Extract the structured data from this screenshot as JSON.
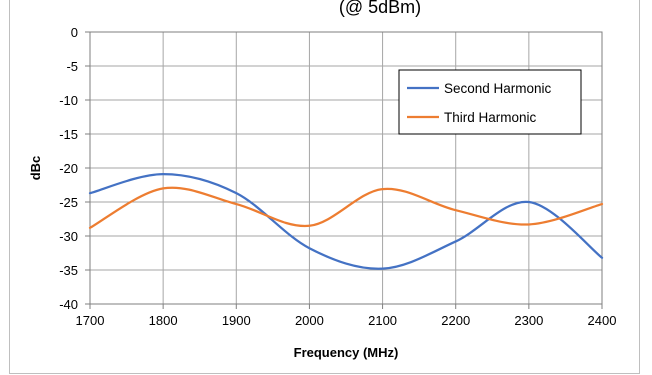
{
  "chart_data": {
    "type": "line",
    "title": "(@ 5dBm)",
    "xlabel": "Frequency (MHz)",
    "ylabel": "dBc",
    "xlim": [
      1700,
      2400
    ],
    "ylim": [
      -40,
      0
    ],
    "x_ticks": [
      1700,
      1800,
      1900,
      2000,
      2100,
      2200,
      2300,
      2400
    ],
    "y_ticks": [
      0,
      -5,
      -10,
      -15,
      -20,
      -25,
      -30,
      -35,
      -40
    ],
    "grid": true,
    "legend_position": "top-right",
    "x": [
      1700,
      1800,
      1900,
      2000,
      2100,
      2200,
      2300,
      2400
    ],
    "series": [
      {
        "name": "Second Harmonic",
        "color": "#4472c4",
        "values": [
          -23.7,
          -20.9,
          -23.7,
          -31.8,
          -34.8,
          -30.8,
          -25.0,
          -33.2
        ]
      },
      {
        "name": "Third Harmonic",
        "color": "#ed7d31",
        "values": [
          -28.8,
          -23.0,
          -25.3,
          -28.5,
          -23.1,
          -26.2,
          -28.3,
          -25.3
        ]
      }
    ]
  }
}
